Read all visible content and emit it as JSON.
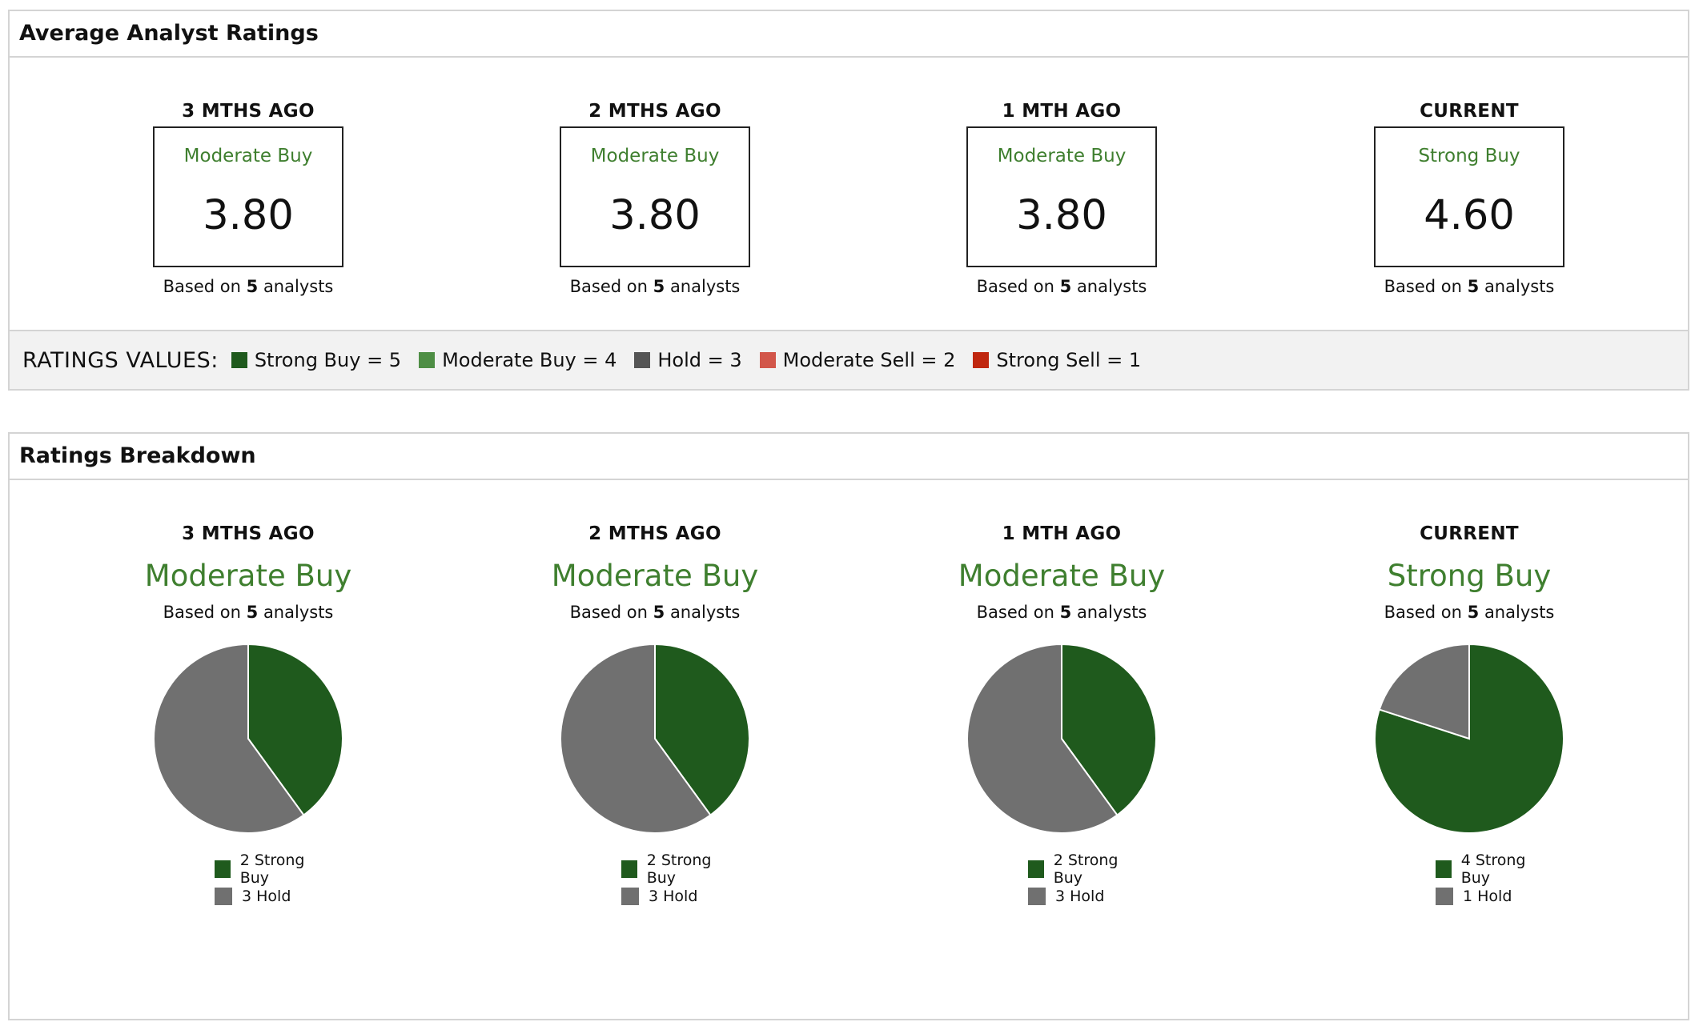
{
  "avg_panel": {
    "title": "Average Analyst Ratings",
    "columns": [
      {
        "period": "3 MTHS AGO",
        "label": "Moderate Buy",
        "value": "3.80",
        "based_prefix": "Based on",
        "count": "5",
        "based_suffix": "analysts"
      },
      {
        "period": "2 MTHS AGO",
        "label": "Moderate Buy",
        "value": "3.80",
        "based_prefix": "Based on",
        "count": "5",
        "based_suffix": "analysts"
      },
      {
        "period": "1 MTH AGO",
        "label": "Moderate Buy",
        "value": "3.80",
        "based_prefix": "Based on",
        "count": "5",
        "based_suffix": "analysts"
      },
      {
        "period": "CURRENT",
        "label": "Strong Buy",
        "value": "4.60",
        "based_prefix": "Based on",
        "count": "5",
        "based_suffix": "analysts"
      }
    ],
    "legend_title": "RATINGS VALUES:",
    "legend": [
      {
        "text": "Strong Buy = 5",
        "color": "#1f5a1d"
      },
      {
        "text": "Moderate Buy = 4",
        "color": "#4e8e45"
      },
      {
        "text": "Hold = 3",
        "color": "#555555"
      },
      {
        "text": "Moderate Sell = 2",
        "color": "#d2564a"
      },
      {
        "text": "Strong Sell = 1",
        "color": "#c0270f"
      }
    ]
  },
  "breakdown_panel": {
    "title": "Ratings Breakdown"
  },
  "chart_data": [
    {
      "type": "pie",
      "title": "3 MTHS AGO",
      "subtitle": "Moderate Buy",
      "based_prefix": "Based on",
      "count": "5",
      "based_suffix": "analysts",
      "slices": [
        {
          "label": "2 Strong Buy",
          "value": 2,
          "color": "#1f5a1d"
        },
        {
          "label": "3 Hold",
          "value": 3,
          "color": "#707070"
        }
      ]
    },
    {
      "type": "pie",
      "title": "2 MTHS AGO",
      "subtitle": "Moderate Buy",
      "based_prefix": "Based on",
      "count": "5",
      "based_suffix": "analysts",
      "slices": [
        {
          "label": "2 Strong Buy",
          "value": 2,
          "color": "#1f5a1d"
        },
        {
          "label": "3 Hold",
          "value": 3,
          "color": "#707070"
        }
      ]
    },
    {
      "type": "pie",
      "title": "1 MTH AGO",
      "subtitle": "Moderate Buy",
      "based_prefix": "Based on",
      "count": "5",
      "based_suffix": "analysts",
      "slices": [
        {
          "label": "2 Strong Buy",
          "value": 2,
          "color": "#1f5a1d"
        },
        {
          "label": "3 Hold",
          "value": 3,
          "color": "#707070"
        }
      ]
    },
    {
      "type": "pie",
      "title": "CURRENT",
      "subtitle": "Strong Buy",
      "based_prefix": "Based on",
      "count": "5",
      "based_suffix": "analysts",
      "slices": [
        {
          "label": "4 Strong Buy",
          "value": 4,
          "color": "#1f5a1d"
        },
        {
          "label": "1 Hold",
          "value": 1,
          "color": "#707070"
        }
      ]
    }
  ]
}
